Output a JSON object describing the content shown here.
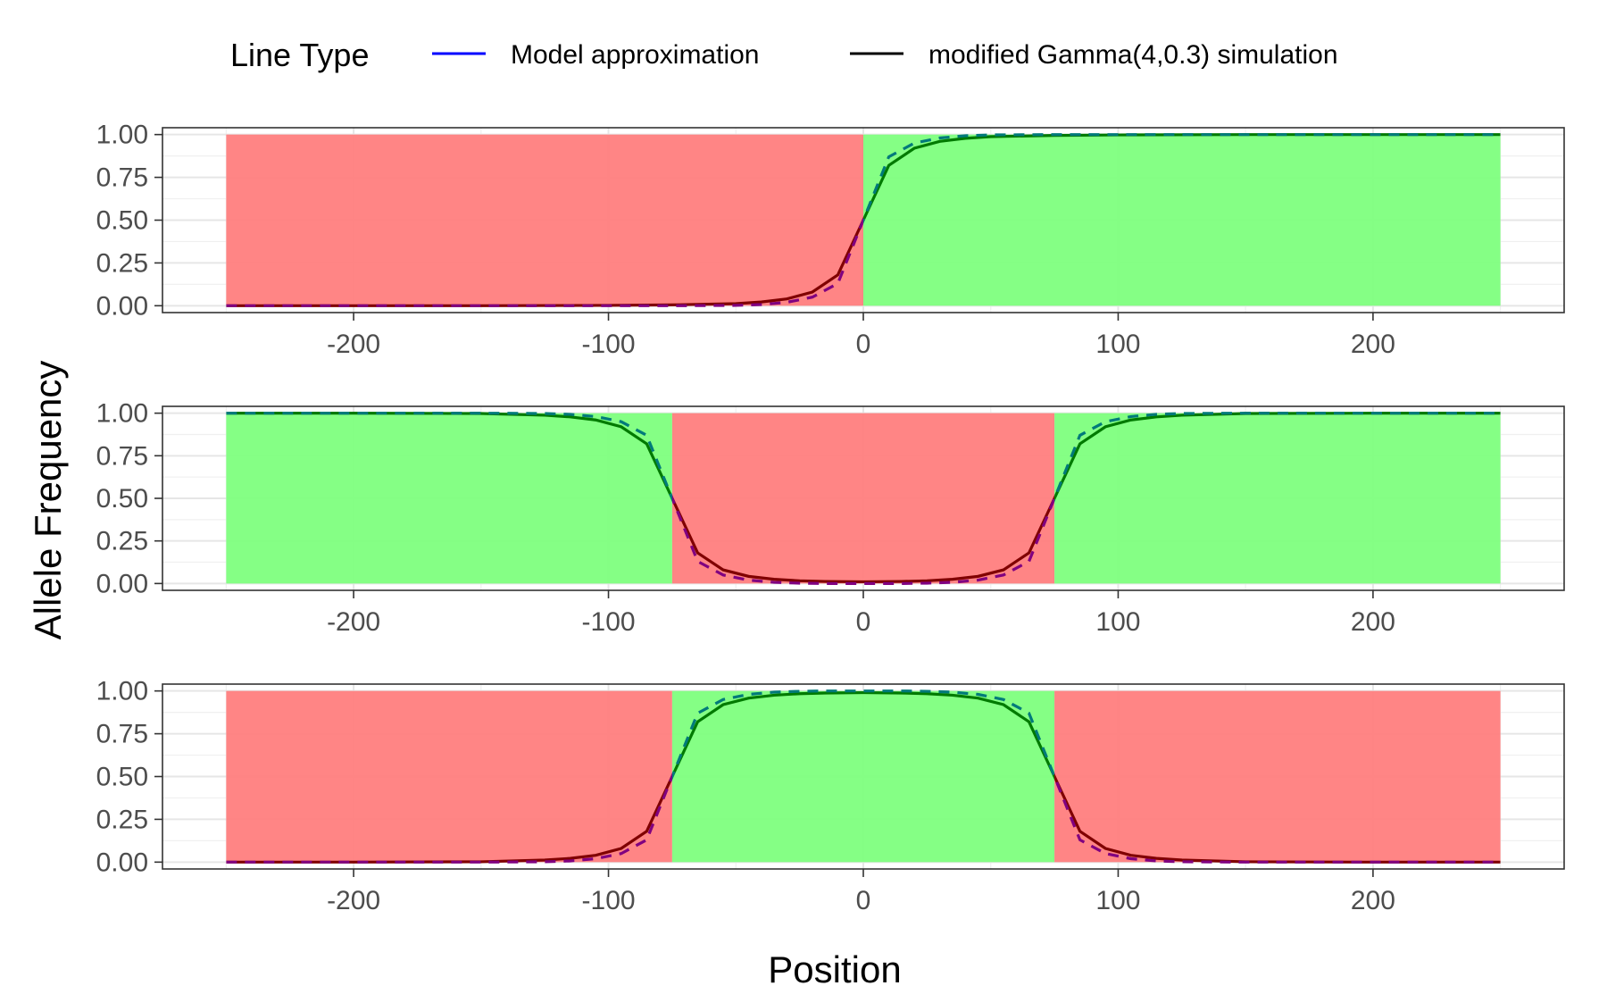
{
  "chart_data": {
    "type": "line",
    "xlabel": "Position",
    "ylabel": "Allele Frequency",
    "legend": {
      "title": "Line Type",
      "position": "top",
      "entries": [
        {
          "label": "Model approximation",
          "color": "#0000ff",
          "dash": "dashed"
        },
        {
          "label": "modified Gamma(4,0.3) simulation",
          "color": "#000000",
          "dash": "solid"
        }
      ]
    },
    "xlim": [
      -275,
      275
    ],
    "ylim": [
      -0.04,
      1.04
    ],
    "x_ticks": [
      -200,
      -100,
      0,
      100,
      200
    ],
    "x_tick_labels": [
      "-200",
      "-100",
      "0",
      "100",
      "200"
    ],
    "y_ticks": [
      0,
      0.25,
      0.5,
      0.75,
      1
    ],
    "y_tick_labels": [
      "0.00",
      "0.25",
      "0.50",
      "0.75",
      "1.00"
    ],
    "grid": true,
    "colors": {
      "green_region": "#80ff80",
      "red_region": "#ff8080"
    },
    "panels": [
      {
        "regions": [
          {
            "from": -250,
            "to": 0,
            "fill": "red"
          },
          {
            "from": 0,
            "to": 250,
            "fill": "green"
          }
        ],
        "series": [
          {
            "kind": "simulation",
            "x": [
              -250,
              -200,
              -150,
              -100,
              -75,
              -50,
              -40,
              -30,
              -20,
              -10,
              0,
              10,
              20,
              30,
              40,
              50,
              75,
              100,
              150,
              200,
              250
            ],
            "y": [
              0.0,
              0.0,
              0.0,
              0.002,
              0.005,
              0.012,
              0.022,
              0.04,
              0.08,
              0.18,
              0.5,
              0.82,
              0.92,
              0.96,
              0.978,
              0.988,
              0.995,
              0.998,
              1.0,
              1.0,
              1.0
            ]
          },
          {
            "kind": "model",
            "x": [
              -250,
              -200,
              -150,
              -100,
              -75,
              -50,
              -40,
              -30,
              -20,
              -10,
              0,
              10,
              20,
              30,
              40,
              50,
              75,
              100,
              150,
              200,
              250
            ],
            "y": [
              0.0,
              0.0,
              0.0,
              0.0,
              0.0,
              0.002,
              0.007,
              0.02,
              0.05,
              0.13,
              0.5,
              0.87,
              0.95,
              0.98,
              0.993,
              0.998,
              1.0,
              1.0,
              1.0,
              1.0,
              1.0
            ]
          }
        ]
      },
      {
        "regions": [
          {
            "from": -250,
            "to": -75,
            "fill": "green"
          },
          {
            "from": -75,
            "to": 75,
            "fill": "red"
          },
          {
            "from": 75,
            "to": 250,
            "fill": "green"
          }
        ],
        "series": [
          {
            "kind": "simulation",
            "x": [
              -250,
              -200,
              -150,
              -125,
              -115,
              -105,
              -95,
              -85,
              -75,
              -65,
              -55,
              -45,
              -35,
              -25,
              -15,
              0,
              15,
              25,
              35,
              45,
              55,
              65,
              75,
              85,
              95,
              105,
              115,
              125,
              150,
              200,
              250
            ],
            "y": [
              1.0,
              1.0,
              0.998,
              0.988,
              0.978,
              0.96,
              0.92,
              0.82,
              0.5,
              0.18,
              0.08,
              0.042,
              0.025,
              0.016,
              0.012,
              0.01,
              0.012,
              0.016,
              0.025,
              0.042,
              0.08,
              0.18,
              0.5,
              0.82,
              0.92,
              0.96,
              0.978,
              0.988,
              0.998,
              1.0,
              1.0
            ]
          },
          {
            "kind": "model",
            "x": [
              -250,
              -200,
              -150,
              -125,
              -115,
              -105,
              -95,
              -85,
              -75,
              -65,
              -55,
              -45,
              -35,
              -25,
              -15,
              0,
              15,
              25,
              35,
              45,
              55,
              65,
              75,
              85,
              95,
              105,
              115,
              125,
              150,
              200,
              250
            ],
            "y": [
              1.0,
              1.0,
              1.0,
              0.998,
              0.993,
              0.98,
              0.95,
              0.87,
              0.5,
              0.13,
              0.05,
              0.02,
              0.007,
              0.002,
              0.0,
              0.0,
              0.0,
              0.002,
              0.007,
              0.02,
              0.05,
              0.13,
              0.5,
              0.87,
              0.95,
              0.98,
              0.993,
              0.998,
              1.0,
              1.0,
              1.0
            ]
          }
        ]
      },
      {
        "regions": [
          {
            "from": -250,
            "to": -75,
            "fill": "red"
          },
          {
            "from": -75,
            "to": 75,
            "fill": "green"
          },
          {
            "from": 75,
            "to": 250,
            "fill": "red"
          }
        ],
        "series": [
          {
            "kind": "simulation",
            "x": [
              -250,
              -200,
              -150,
              -125,
              -115,
              -105,
              -95,
              -85,
              -75,
              -65,
              -55,
              -45,
              -35,
              -25,
              -15,
              0,
              15,
              25,
              35,
              45,
              55,
              65,
              75,
              85,
              95,
              105,
              115,
              125,
              150,
              200,
              250
            ],
            "y": [
              0.0,
              0.0,
              0.002,
              0.012,
              0.022,
              0.04,
              0.08,
              0.18,
              0.5,
              0.82,
              0.92,
              0.958,
              0.975,
              0.984,
              0.988,
              0.99,
              0.988,
              0.984,
              0.975,
              0.958,
              0.92,
              0.82,
              0.5,
              0.18,
              0.08,
              0.04,
              0.022,
              0.012,
              0.002,
              0.0,
              0.0
            ]
          },
          {
            "kind": "model",
            "x": [
              -250,
              -200,
              -150,
              -125,
              -115,
              -105,
              -95,
              -85,
              -75,
              -65,
              -55,
              -45,
              -35,
              -25,
              -15,
              0,
              15,
              25,
              35,
              45,
              55,
              65,
              75,
              85,
              95,
              105,
              115,
              125,
              150,
              200,
              250
            ],
            "y": [
              0.0,
              0.0,
              0.0,
              0.002,
              0.007,
              0.02,
              0.05,
              0.13,
              0.5,
              0.87,
              0.95,
              0.98,
              0.993,
              0.998,
              1.0,
              1.0,
              1.0,
              0.998,
              0.993,
              0.98,
              0.95,
              0.87,
              0.5,
              0.13,
              0.05,
              0.02,
              0.007,
              0.002,
              0.0,
              0.0,
              0.0
            ]
          }
        ]
      }
    ]
  }
}
